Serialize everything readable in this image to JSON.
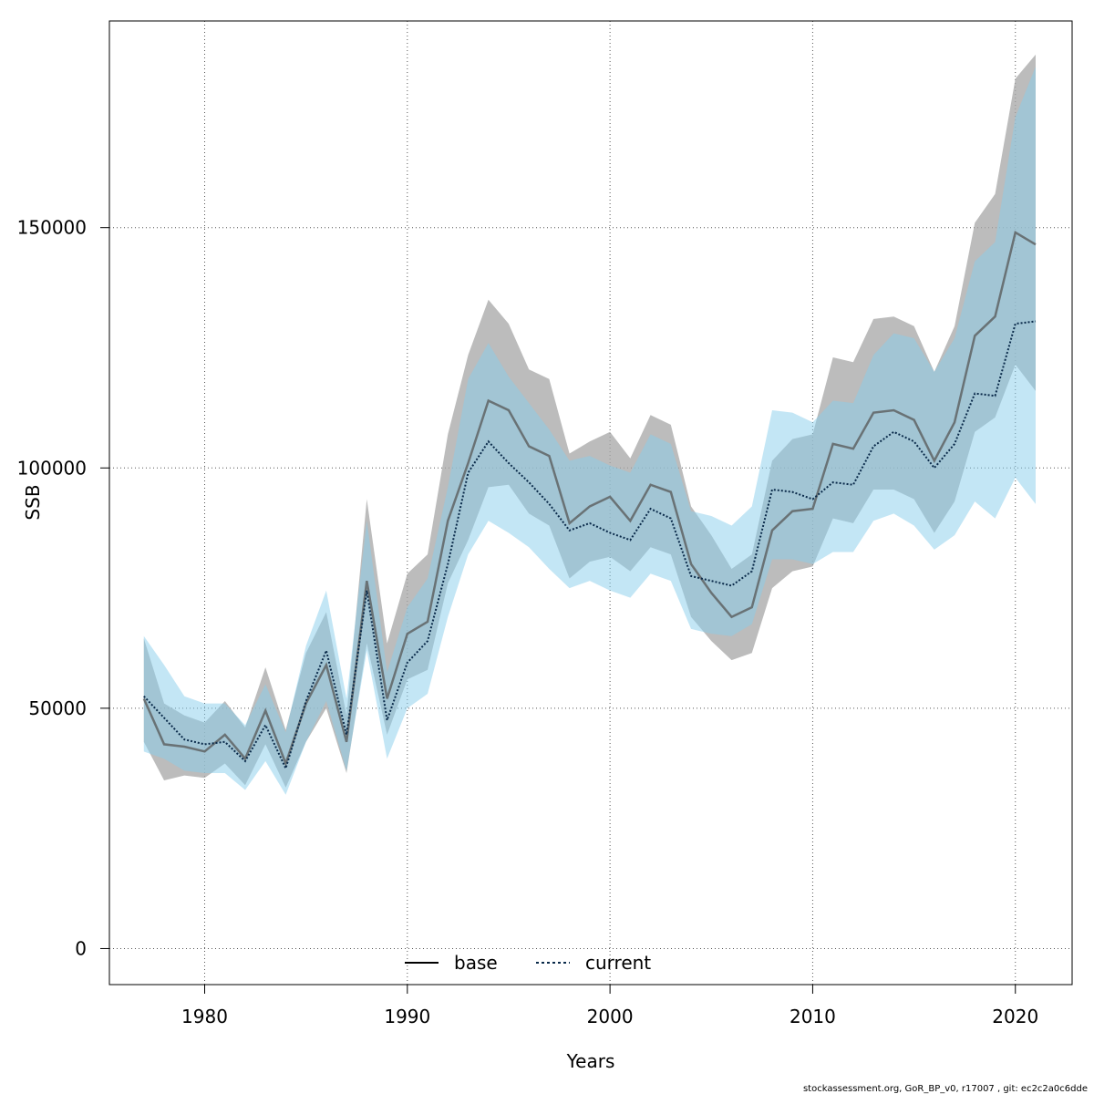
{
  "chart_data": {
    "type": "area",
    "xlabel": "Years",
    "ylabel": "SSB",
    "xlim": [
      1975.3,
      2022.8
    ],
    "ylim": [
      -7500,
      193000
    ],
    "xticks": [
      1980,
      1990,
      2000,
      2010,
      2020
    ],
    "yticks": [
      0,
      50000,
      100000,
      150000
    ],
    "xtick_labels": [
      "1980",
      "1990",
      "2000",
      "2010",
      "2020"
    ],
    "ytick_labels": [
      "0",
      "50000",
      "100000",
      "150000"
    ],
    "grid": true,
    "legend_placement": "bottom-center",
    "x": [
      1977,
      1978,
      1979,
      1980,
      1981,
      1982,
      1983,
      1984,
      1985,
      1986,
      1987,
      1988,
      1989,
      1990,
      1991,
      1992,
      1993,
      1994,
      1995,
      1996,
      1997,
      1998,
      1999,
      2000,
      2001,
      2002,
      2003,
      2004,
      2005,
      2006,
      2007,
      2008,
      2009,
      2010,
      2011,
      2012,
      2013,
      2014,
      2015,
      2016,
      2017,
      2018,
      2019,
      2020,
      2021
    ],
    "series": [
      {
        "name": "base",
        "line_color": "#555555",
        "band_color": "#a6a6a6",
        "values": [
          52000,
          42500,
          42000,
          41000,
          44500,
          39500,
          49500,
          38500,
          51000,
          59000,
          43000,
          76500,
          52000,
          65500,
          68000,
          89000,
          101000,
          114000,
          112000,
          104500,
          102500,
          88500,
          92000,
          94000,
          89000,
          96500,
          95000,
          80000,
          74000,
          69000,
          71000,
          87000,
          91000,
          91500,
          105000,
          104000,
          111500,
          112000,
          110000,
          101500,
          109500,
          127500,
          131500,
          149000,
          146500
        ],
        "upper": [
          64500,
          51000,
          48500,
          47000,
          51500,
          46000,
          58500,
          45500,
          61500,
          70000,
          48500,
          93500,
          63500,
          78000,
          82000,
          107000,
          123500,
          135000,
          130000,
          120500,
          118500,
          103000,
          105500,
          107500,
          102000,
          111000,
          109000,
          92000,
          86000,
          79000,
          82000,
          101500,
          106000,
          107000,
          123000,
          122000,
          131000,
          131500,
          129500,
          120000,
          129500,
          151000,
          157000,
          181000,
          186000
        ],
        "lower": [
          43000,
          35000,
          36000,
          35500,
          38500,
          34000,
          42500,
          33500,
          43000,
          50000,
          36500,
          63500,
          44500,
          56000,
          58000,
          76000,
          85000,
          96000,
          96500,
          90500,
          88000,
          77000,
          80500,
          81500,
          78500,
          83500,
          82000,
          69000,
          64000,
          60000,
          61500,
          75000,
          78500,
          79500,
          89500,
          88500,
          95500,
          95500,
          93500,
          86500,
          93000,
          107500,
          110500,
          121500,
          116000
        ]
      },
      {
        "name": "current",
        "line_color": "#0a2a4a",
        "band_color": "#87ceeb",
        "values": [
          52500,
          48000,
          43500,
          42500,
          43000,
          39000,
          46500,
          37500,
          51500,
          62000,
          44500,
          74500,
          47500,
          59500,
          64000,
          80000,
          99000,
          105500,
          101000,
          97000,
          92500,
          87000,
          88500,
          86500,
          85000,
          91500,
          89500,
          77500,
          76500,
          75500,
          78500,
          95500,
          95000,
          93500,
          97000,
          96500,
          104500,
          107500,
          105500,
          100000,
          105000,
          115500,
          115000,
          130000,
          130500
        ],
        "upper": [
          65000,
          59000,
          52500,
          51000,
          51000,
          46500,
          55000,
          45000,
          63000,
          74500,
          52000,
          89000,
          57500,
          71000,
          77000,
          96000,
          118500,
          126000,
          119000,
          113500,
          108000,
          101500,
          102500,
          100500,
          99000,
          107000,
          105000,
          91000,
          90000,
          88000,
          92000,
          112000,
          111500,
          109500,
          114000,
          113500,
          123500,
          128000,
          127000,
          120000,
          127000,
          143000,
          147000,
          173000,
          183500
        ],
        "lower": [
          41000,
          39500,
          37000,
          36500,
          36500,
          33000,
          39000,
          32000,
          43000,
          51500,
          37000,
          62000,
          39500,
          50000,
          53000,
          69000,
          82000,
          89000,
          86500,
          83500,
          79000,
          75000,
          76500,
          74500,
          73000,
          78000,
          76500,
          66500,
          65500,
          65000,
          67500,
          81000,
          81000,
          80000,
          82500,
          82500,
          89000,
          90500,
          88000,
          83000,
          86000,
          93000,
          89500,
          98000,
          92500
        ]
      }
    ]
  },
  "footer": "stockassessment.org, GoR_BP_v0, r17007 , git: ec2c2a0c6dde"
}
